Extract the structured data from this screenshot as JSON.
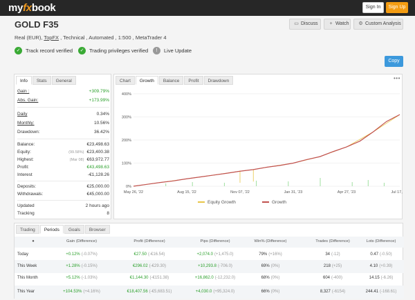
{
  "header": {
    "logo_parts": [
      "my",
      "fx",
      "book"
    ],
    "signin_label": "Sign In",
    "signup_label": "Sign Up"
  },
  "account": {
    "title": "GOLD F35",
    "subtitle_pre": "Real (EUR), ",
    "broker": "TopFX",
    "subtitle_post": " , Technical , Automated , 1:500 , MetaTrader 4"
  },
  "actions": [
    {
      "icon": "chat-icon",
      "glyph": "🗨",
      "label": "Discuss"
    },
    {
      "icon": "plus-icon",
      "glyph": "+",
      "label": "Watch"
    },
    {
      "icon": "gear-icon",
      "glyph": "⚙",
      "label": "Custom Analysis"
    }
  ],
  "badges": [
    {
      "label": "Track record verified",
      "color": "#3aaa35",
      "glyph": "✓"
    },
    {
      "label": "Trading privileges verified",
      "color": "#3aaa35",
      "glyph": "✓"
    },
    {
      "label": "Live Update",
      "color": "#999999",
      "glyph": "!"
    }
  ],
  "copy_label": "Copy",
  "stats_panel": {
    "tabs": [
      "Info",
      "Stats",
      "General"
    ],
    "active_tab": "Info",
    "rows": [
      {
        "key": "Gain :",
        "value": "+309.79%",
        "underline": true,
        "green": true
      },
      {
        "key": "Abs. Gain:",
        "value": "+173.99%",
        "underline": true,
        "green": true
      },
      {
        "key": "Daily",
        "value": "0.34%"
      },
      {
        "key": "Monthly:",
        "value": "10.56%"
      },
      {
        "key": "Drawdown:",
        "value": "36.42%"
      },
      {
        "key": "Balance:",
        "value": "€23,498.63"
      },
      {
        "key": "Equity:",
        "note": "(99.58%)",
        "value": "€23,400.38"
      },
      {
        "key": "Highest:",
        "note": "(Mar 08)",
        "value": "€63,972.77"
      },
      {
        "key": "Profit:",
        "value": "€43,498.63",
        "green": true
      },
      {
        "key": "Interest",
        "value": "-€1,128.26"
      },
      {
        "key": "Deposits:",
        "value": "€25,000.00"
      },
      {
        "key": "Withdrawals:",
        "value": "€45,000.00"
      },
      {
        "key": "Updated",
        "value": "2 hours ago"
      },
      {
        "key": "Tracking",
        "value": "8"
      }
    ]
  },
  "chart_panel": {
    "tabs": [
      "Chart",
      "Growth",
      "Balance",
      "Profit",
      "Drawdown"
    ],
    "active_tab": "Growth",
    "menu_glyph": "•••"
  },
  "chart_data": {
    "type": "line",
    "x_tick_labels": [
      "May 26, '22",
      "Aug 15, '22",
      "Nov 07, '22",
      "Jan 31, '23",
      "Apr 27, '23",
      "Jul 17, '23"
    ],
    "y_tick_labels": [
      "0%",
      "100%",
      "200%",
      "300%",
      "400%"
    ],
    "ylim": [
      0,
      400
    ],
    "legend": [
      "Equity Growth",
      "Growth"
    ],
    "colors": {
      "growth": "#c0504d",
      "equity": "#e8c547",
      "bars": "#9fdf9f"
    },
    "series": [
      {
        "name": "Growth",
        "x": [
          0,
          0.05,
          0.1,
          0.15,
          0.2,
          0.25,
          0.3,
          0.35,
          0.4,
          0.45,
          0.5,
          0.55,
          0.6,
          0.65,
          0.7,
          0.75,
          0.8,
          0.85,
          0.9,
          0.95,
          1.0
        ],
        "values": [
          0,
          8,
          16,
          23,
          32,
          40,
          48,
          56,
          65,
          72,
          82,
          90,
          100,
          115,
          128,
          150,
          170,
          195,
          235,
          280,
          310
        ]
      },
      {
        "name": "Equity Growth",
        "x": [
          0,
          0.1,
          0.2,
          0.3,
          0.4,
          0.4,
          0.4,
          0.45,
          0.45,
          0.45,
          0.5,
          0.6,
          0.7,
          0.8,
          0.9,
          1.0
        ],
        "values": [
          0,
          16,
          32,
          48,
          65,
          15,
          65,
          72,
          20,
          72,
          82,
          100,
          128,
          170,
          235,
          310
        ]
      }
    ]
  },
  "periods_panel": {
    "tabs": [
      "Trading",
      "Periods",
      "Goals",
      "Browser"
    ],
    "active_tab": "Periods",
    "headers": [
      "",
      "Gain (Difference)",
      "Profit (Difference)",
      "Pips (Difference)",
      "Win% (Difference)",
      "Trades (Difference)",
      "Lots (Difference)"
    ],
    "rows": [
      {
        "period": "Today",
        "gain": "+0.12%",
        "gain_d": "(-0.07%)",
        "profit": "€27.50",
        "profit_d": "(-€16.54)",
        "pips": "+2,074.0",
        "pips_d": "(+1,475.0)",
        "win": "79%",
        "win_d": "(+16%)",
        "trades": "34",
        "trades_d": "(-12)",
        "lots": "0.47",
        "lots_d": "(-0.50)"
      },
      {
        "period": "This Week",
        "gain": "+1.28%",
        "gain_d": "(-0.15%)",
        "profit": "€296.02",
        "profit_d": "(-€29.30)",
        "pips": "+10,293.8",
        "pips_d": "(-706.0)",
        "win": "69%",
        "win_d": "(0%)",
        "trades": "218",
        "trades_d": "(+25)",
        "lots": "4.10",
        "lots_d": "(+0.39)"
      },
      {
        "period": "This Month",
        "gain": "+5.12%",
        "gain_d": "(-1.03%)",
        "profit": "€1,144.30",
        "profit_d": "(-€151.38)",
        "pips": "+16,862.0",
        "pips_d": "(-12,232.0)",
        "win": "68%",
        "win_d": "(0%)",
        "trades": "604",
        "trades_d": "(-400)",
        "lots": "14.15",
        "lots_d": "(-6.26)"
      },
      {
        "period": "This Year",
        "gain": "+104.53%",
        "gain_d": "(+4.16%)",
        "profit": "€18,407.56",
        "profit_d": "(-€5,683.51)",
        "pips": "+4,030.0",
        "pips_d": "(+95,324.0)",
        "win": "66%",
        "win_d": "(0%)",
        "trades": "8,327",
        "trades_d": "(-6154)",
        "lots": "244.41",
        "lots_d": "(-168.61)"
      }
    ]
  }
}
